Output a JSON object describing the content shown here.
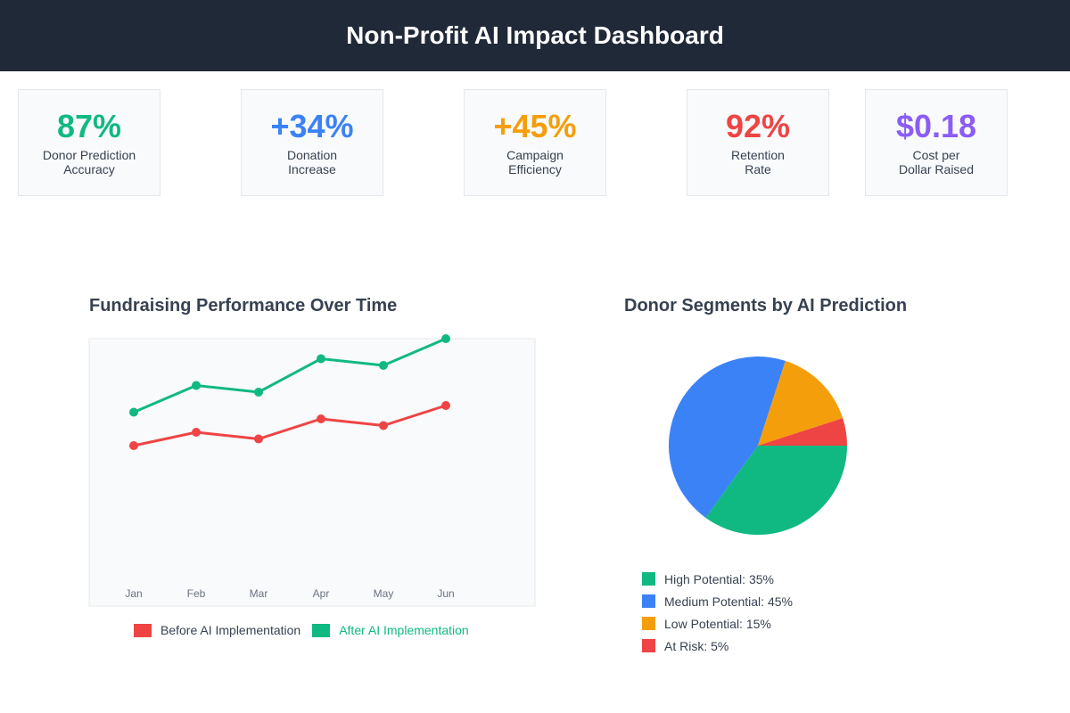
{
  "header": {
    "title": "Non-Profit AI Impact Dashboard"
  },
  "kpis": [
    {
      "value": "87%",
      "label_line1": "Donor Prediction",
      "label_line2": "Accuracy",
      "color": "#10b981"
    },
    {
      "value": "+34%",
      "label_line1": "Donation",
      "label_line2": "Increase",
      "color": "#3b82f6"
    },
    {
      "value": "+45%",
      "label_line1": "Campaign",
      "label_line2": "Efficiency",
      "color": "#f59e0b"
    },
    {
      "value": "92%",
      "label_line1": "Retention",
      "label_line2": "Rate",
      "color": "#ef4444"
    },
    {
      "value": "$0.18",
      "label_line1": "Cost per",
      "label_line2": "Dollar Raised",
      "color": "#8b5cf6"
    }
  ],
  "chart_data": [
    {
      "type": "line",
      "title": "Fundraising Performance Over Time",
      "categories": [
        "Jan",
        "Feb",
        "Mar",
        "Apr",
        "May",
        "Jun"
      ],
      "series": [
        {
          "name": "Before AI Implementation",
          "values": [
            120,
            130,
            125,
            140,
            135,
            150
          ],
          "color": "#ef4444"
        },
        {
          "name": "After AI Implementation",
          "values": [
            145,
            165,
            160,
            185,
            180,
            200
          ],
          "color": "#10b981"
        }
      ],
      "ylim": [
        0,
        200
      ],
      "xlabel": "",
      "ylabel": "",
      "legend": "bottom"
    },
    {
      "type": "pie",
      "title": "Donor Segments by AI Prediction",
      "categories": [
        "High Potential",
        "Medium Potential",
        "Low Potential",
        "At Risk"
      ],
      "values": [
        35,
        45,
        15,
        5
      ],
      "colors": [
        "#10b981",
        "#3b82f6",
        "#f59e0b",
        "#ef4444"
      ],
      "legend_labels": [
        "High Potential: 35%",
        "Medium Potential: 45%",
        "Low Potential: 15%",
        "At Risk: 5%"
      ],
      "legend": "bottom"
    }
  ]
}
